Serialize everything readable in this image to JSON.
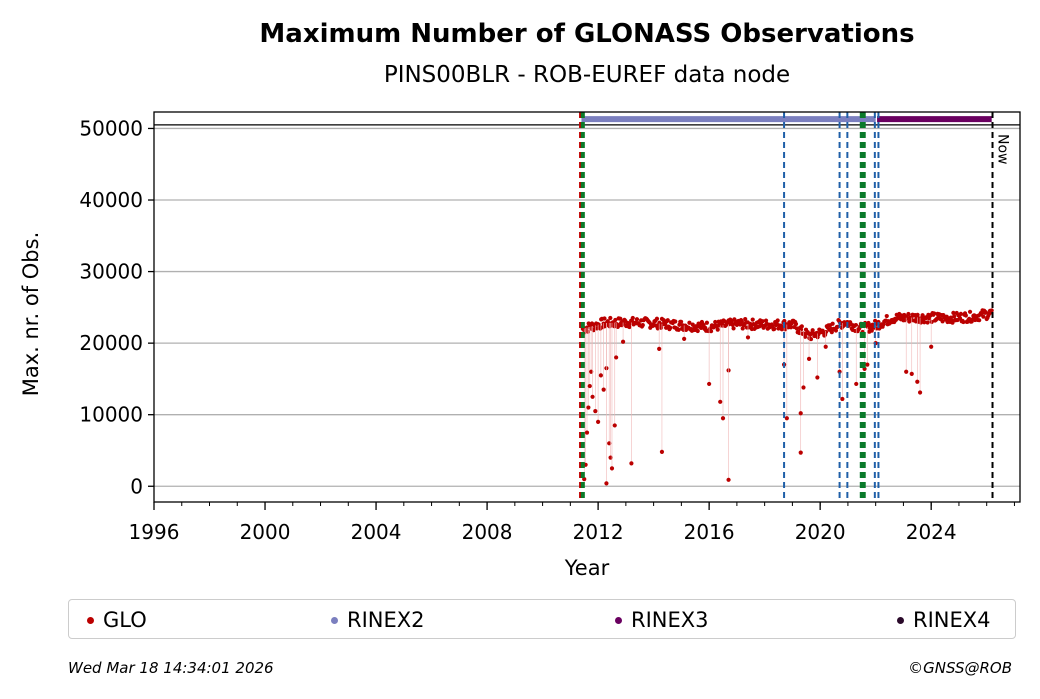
{
  "chart_data": {
    "type": "scatter",
    "title": "Maximum Number of GLONASS Observations",
    "subtitle": "PINS00BLR - ROB-EUREF data node",
    "xlabel": "Year",
    "ylabel": "Max. nr. of Obs.",
    "xlim": [
      1996.0,
      2027.2
    ],
    "ylim": [
      -2200,
      52300
    ],
    "xticks": [
      1996,
      2000,
      2004,
      2008,
      2012,
      2016,
      2020,
      2024
    ],
    "xtick_labels": [
      "1996",
      "2000",
      "2004",
      "2008",
      "2012",
      "2016",
      "2020",
      "2024"
    ],
    "yticks": [
      0,
      10000,
      20000,
      30000,
      40000,
      50000
    ],
    "ytick_labels": [
      "0",
      "10000",
      "20000",
      "30000",
      "40000",
      "50000"
    ],
    "grid": true,
    "reference_line": 50500,
    "now_line": {
      "x": 2026.21,
      "label": "Now"
    },
    "event_lines": [
      {
        "x": 2011.35,
        "color": "#c00000"
      },
      {
        "x": 2011.45,
        "color": "#0b7a2a"
      },
      {
        "x": 2018.7,
        "color": "#1f5fa8"
      },
      {
        "x": 2020.7,
        "color": "#1f5fa8"
      },
      {
        "x": 2020.98,
        "color": "#1f5fa8"
      },
      {
        "x": 2021.5,
        "color": "#0b7a2a"
      },
      {
        "x": 2021.57,
        "color": "#0b7a2a"
      },
      {
        "x": 2021.97,
        "color": "#1f5fa8"
      },
      {
        "x": 2022.1,
        "color": "#1f5fa8"
      }
    ],
    "rinex_bars": [
      {
        "name": "RINEX2",
        "start": 2011.4,
        "end": 2022.0,
        "y": 51300,
        "color": "#7b7fbf"
      },
      {
        "name": "RINEX3",
        "start": 2022.05,
        "end": 2026.18,
        "y": 51300,
        "color": "#6a0060"
      }
    ],
    "series": [
      {
        "name": "GLO",
        "color": "#bb0000",
        "baseline": [
          [
            2011.45,
            22000
          ],
          [
            2012.2,
            22800
          ],
          [
            2013.0,
            22900
          ],
          [
            2014.0,
            22800
          ],
          [
            2015.0,
            22500
          ],
          [
            2016.0,
            22300
          ],
          [
            2017.0,
            22700
          ],
          [
            2018.0,
            22600
          ],
          [
            2019.0,
            22600
          ],
          [
            2019.6,
            21000
          ],
          [
            2020.2,
            21700
          ],
          [
            2020.9,
            23000
          ],
          [
            2021.5,
            22000
          ],
          [
            2022.0,
            22500
          ],
          [
            2022.6,
            23500
          ],
          [
            2023.5,
            23600
          ],
          [
            2024.5,
            23500
          ],
          [
            2025.5,
            23700
          ],
          [
            2026.2,
            24200
          ]
        ],
        "outliers": [
          [
            2011.5,
            1000
          ],
          [
            2011.55,
            3000
          ],
          [
            2011.6,
            7500
          ],
          [
            2011.65,
            11000
          ],
          [
            2011.7,
            14000
          ],
          [
            2011.75,
            16000
          ],
          [
            2011.8,
            12500
          ],
          [
            2011.9,
            10500
          ],
          [
            2012.0,
            9000
          ],
          [
            2012.1,
            15500
          ],
          [
            2012.2,
            13500
          ],
          [
            2012.3,
            16500
          ],
          [
            2012.4,
            6000
          ],
          [
            2012.45,
            4000
          ],
          [
            2012.5,
            2500
          ],
          [
            2012.6,
            8500
          ],
          [
            2012.65,
            18000
          ],
          [
            2012.3,
            400
          ],
          [
            2013.2,
            3200
          ],
          [
            2014.3,
            4800
          ],
          [
            2014.2,
            19200
          ],
          [
            2016.0,
            14300
          ],
          [
            2016.4,
            11800
          ],
          [
            2016.5,
            9500
          ],
          [
            2016.7,
            16200
          ],
          [
            2016.7,
            900
          ],
          [
            2018.7,
            17000
          ],
          [
            2018.8,
            9500
          ],
          [
            2019.3,
            4700
          ],
          [
            2019.3,
            10200
          ],
          [
            2019.4,
            13800
          ],
          [
            2019.6,
            17800
          ],
          [
            2019.9,
            15200
          ],
          [
            2020.2,
            19500
          ],
          [
            2020.8,
            12200
          ],
          [
            2020.7,
            16000
          ],
          [
            2021.3,
            14300
          ],
          [
            2021.6,
            16400
          ],
          [
            2021.7,
            17000
          ],
          [
            2022.0,
            20000
          ],
          [
            2023.1,
            16000
          ],
          [
            2023.3,
            15700
          ],
          [
            2023.5,
            14600
          ],
          [
            2023.6,
            13100
          ],
          [
            2024.0,
            19500
          ],
          [
            2012.9,
            20200
          ],
          [
            2015.1,
            20600
          ],
          [
            2017.4,
            20800
          ]
        ]
      },
      {
        "name": "RINEX2",
        "color": "#7b7fbf"
      },
      {
        "name": "RINEX3",
        "color": "#6a0060"
      },
      {
        "name": "RINEX4",
        "color": "#2a0a2a"
      }
    ]
  },
  "legend": {
    "items": [
      {
        "label": "GLO",
        "color": "#bb0000"
      },
      {
        "label": "RINEX2",
        "color": "#7b7fbf"
      },
      {
        "label": "RINEX3",
        "color": "#6a0060"
      },
      {
        "label": "RINEX4",
        "color": "#2a0a2a"
      }
    ]
  },
  "footer": {
    "timestamp": "Wed Mar 18 14:34:01 2026",
    "copyright": "©GNSS@ROB"
  }
}
